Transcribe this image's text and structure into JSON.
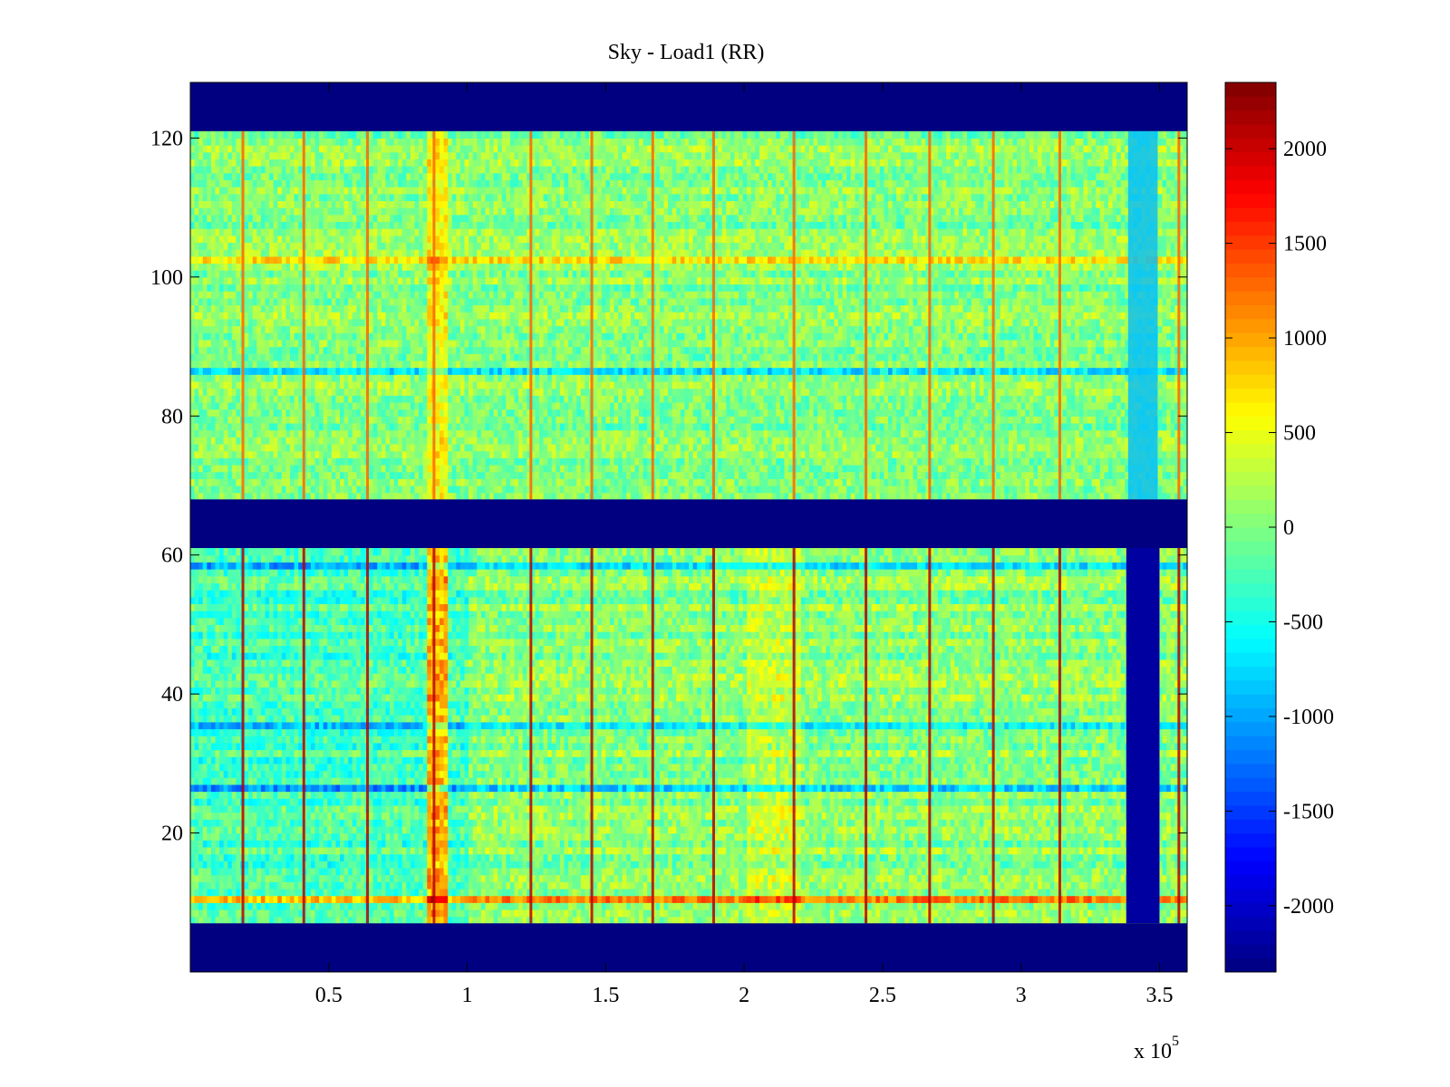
{
  "chart_data": {
    "type": "heatmap",
    "title": "Sky - Load1 (RR)",
    "x_multiplier_label": "x 10",
    "x_multiplier_exponent": "5",
    "x_ticks": [
      {
        "value": 0.5,
        "label": "0.5"
      },
      {
        "value": 1,
        "label": "1"
      },
      {
        "value": 1.5,
        "label": "1.5"
      },
      {
        "value": 2,
        "label": "2"
      },
      {
        "value": 2.5,
        "label": "2.5"
      },
      {
        "value": 3,
        "label": "3"
      },
      {
        "value": 3.5,
        "label": "3.5"
      }
    ],
    "y_ticks": [
      {
        "value": 20,
        "label": "20"
      },
      {
        "value": 40,
        "label": "40"
      },
      {
        "value": 60,
        "label": "60"
      },
      {
        "value": 80,
        "label": "80"
      },
      {
        "value": 100,
        "label": "100"
      },
      {
        "value": 120,
        "label": "120"
      }
    ],
    "xlim": [
      0,
      3.6
    ],
    "ylim": [
      0,
      128
    ],
    "colormap": "jet",
    "clim": [
      -2350,
      2350
    ],
    "colorbar_ticks": [
      {
        "value": 2000,
        "label": "2000"
      },
      {
        "value": 1500,
        "label": "1500"
      },
      {
        "value": 1000,
        "label": "1000"
      },
      {
        "value": 500,
        "label": "500"
      },
      {
        "value": 0,
        "label": "0"
      },
      {
        "value": -500,
        "label": "-500"
      },
      {
        "value": -1000,
        "label": "-1000"
      },
      {
        "value": -1500,
        "label": "-1500"
      },
      {
        "value": -2000,
        "label": "-2000"
      }
    ],
    "masked_value": -2350,
    "masked_y_ranges": [
      [
        0,
        7
      ],
      [
        61,
        68
      ],
      [
        121,
        128
      ]
    ],
    "data_regions": [
      {
        "y": [
          7,
          61
        ],
        "base_value": -250
      },
      {
        "y": [
          68,
          121
        ],
        "base_value": 50
      }
    ],
    "masked_x_band": {
      "x": [
        3.38,
        3.5
      ],
      "y": [
        7,
        61
      ],
      "value": -2200
    },
    "vertical_spikes_x": [
      0.19,
      0.41,
      0.64,
      0.88,
      1.23,
      1.45,
      1.67,
      1.89,
      2.18,
      2.44,
      2.67,
      2.9,
      3.14,
      3.57
    ],
    "notable_rows": [
      {
        "y": 102,
        "value": 700
      },
      {
        "y": 86,
        "value": -700
      },
      {
        "y": 26,
        "value": -1100
      },
      {
        "y": 35,
        "value": -900
      },
      {
        "y": 58,
        "value": -1000
      },
      {
        "y": 10,
        "value": 900
      }
    ]
  }
}
